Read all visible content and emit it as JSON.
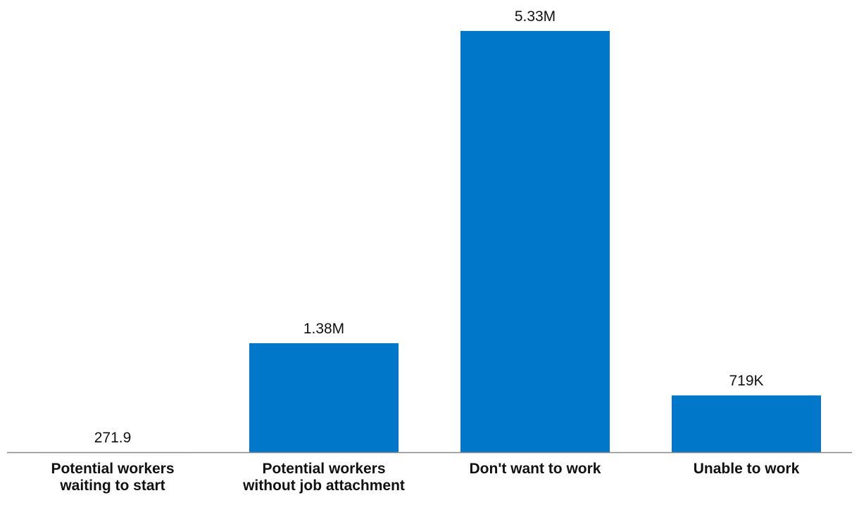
{
  "chart_data": {
    "type": "bar",
    "categories": [
      [
        "Potential workers",
        "waiting to start"
      ],
      [
        "Potential workers",
        "without job attachment"
      ],
      [
        "Don't want to work"
      ],
      [
        "Unable to work"
      ]
    ],
    "values": [
      271.9,
      1380000,
      5330000,
      719000
    ],
    "data_labels": [
      "271.9",
      "1.38M",
      "5.33M",
      "719K"
    ],
    "title": "",
    "xlabel": "",
    "ylabel": "",
    "ylim": [
      0,
      5330000
    ],
    "grid": false,
    "legend": "none",
    "colors": {
      "bar": "#0077C8",
      "axis": "#888888",
      "text": "#111111"
    }
  }
}
